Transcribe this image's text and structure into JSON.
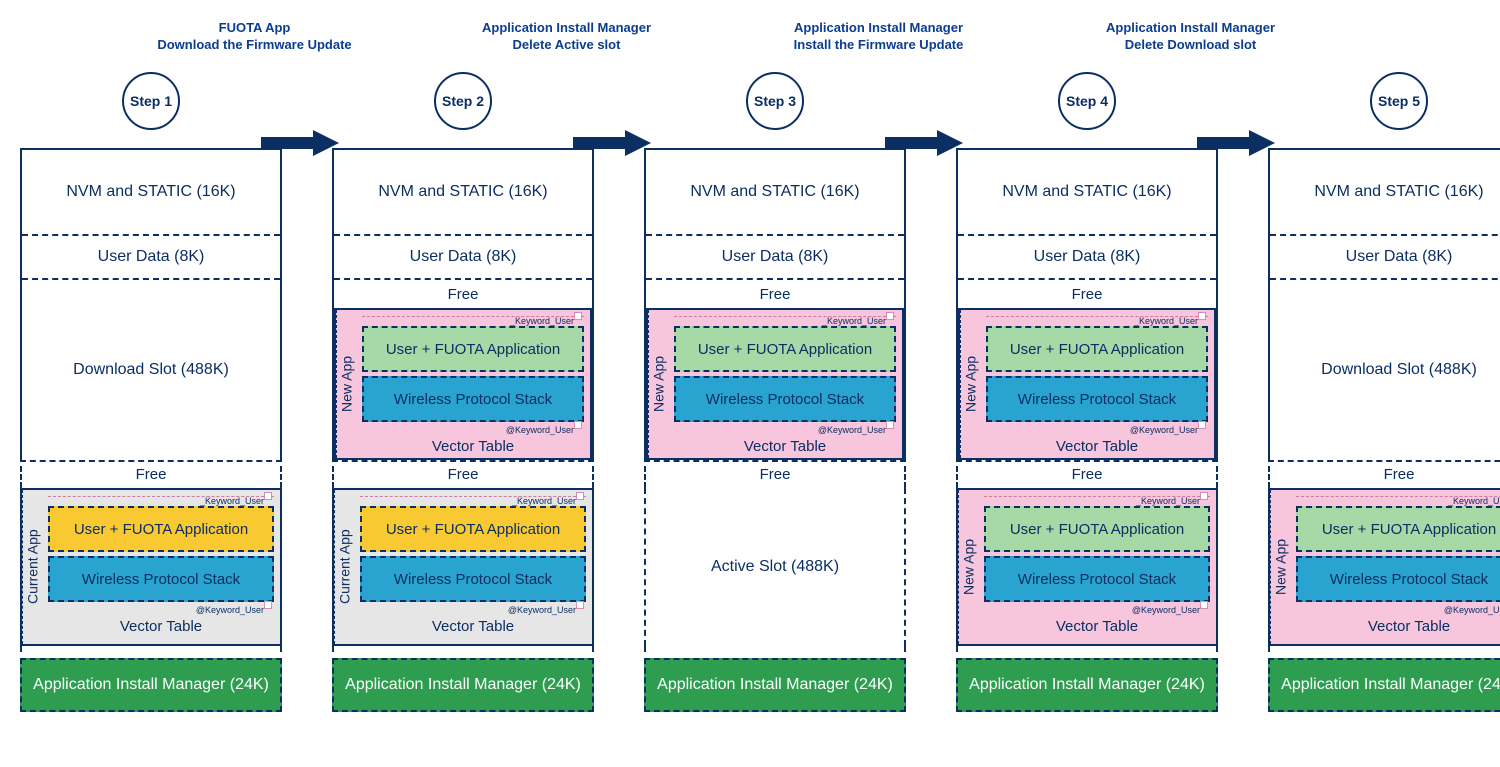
{
  "colors": {
    "primary": "#0b2e63",
    "header_text": "#0b3d91",
    "pink": "#f7c5dc",
    "grey": "#e6e6e6",
    "yellow": "#f9c932",
    "blue_tile": "#29a3cf",
    "green_tile": "#a6d9a6",
    "aim_green": "#2e9d4f",
    "white": "#ffffff"
  },
  "strings": {
    "nvm": "NVM and STATIC (16K)",
    "userdata": "User Data (8K)",
    "dlslot": "Download Slot (488K)",
    "activeslot": "Active Slot (488K)",
    "free": "Free",
    "user_app": "User + FUOTA Application",
    "wps": "Wireless Protocol Stack",
    "vector": "Vector Table",
    "aim": "Application Install Manager (24K)",
    "new_app": "New App",
    "current_app": "Current App",
    "kw_top": "_Keyword_User",
    "kw_bot": "@Keyword_User"
  },
  "steps": [
    {
      "label": "Step 1",
      "header_l1": "",
      "header_l2": "",
      "download_mode": "plain",
      "active_mode": "current"
    },
    {
      "label": "Step 2",
      "header_l1": "FUOTA App",
      "header_l2": "Download the Firmware Update",
      "download_mode": "newapp",
      "active_mode": "current"
    },
    {
      "label": "Step 3",
      "header_l1": "Application Install Manager",
      "header_l2": "Delete Active slot",
      "download_mode": "newapp",
      "active_mode": "empty"
    },
    {
      "label": "Step 4",
      "header_l1": "Application Install Manager",
      "header_l2": "Install the Firmware Update",
      "download_mode": "newapp",
      "active_mode": "new"
    },
    {
      "label": "Step 5",
      "header_l1": "Application Install Manager",
      "header_l2": "Delete Download slot",
      "download_mode": "plain",
      "active_mode": "new"
    }
  ]
}
